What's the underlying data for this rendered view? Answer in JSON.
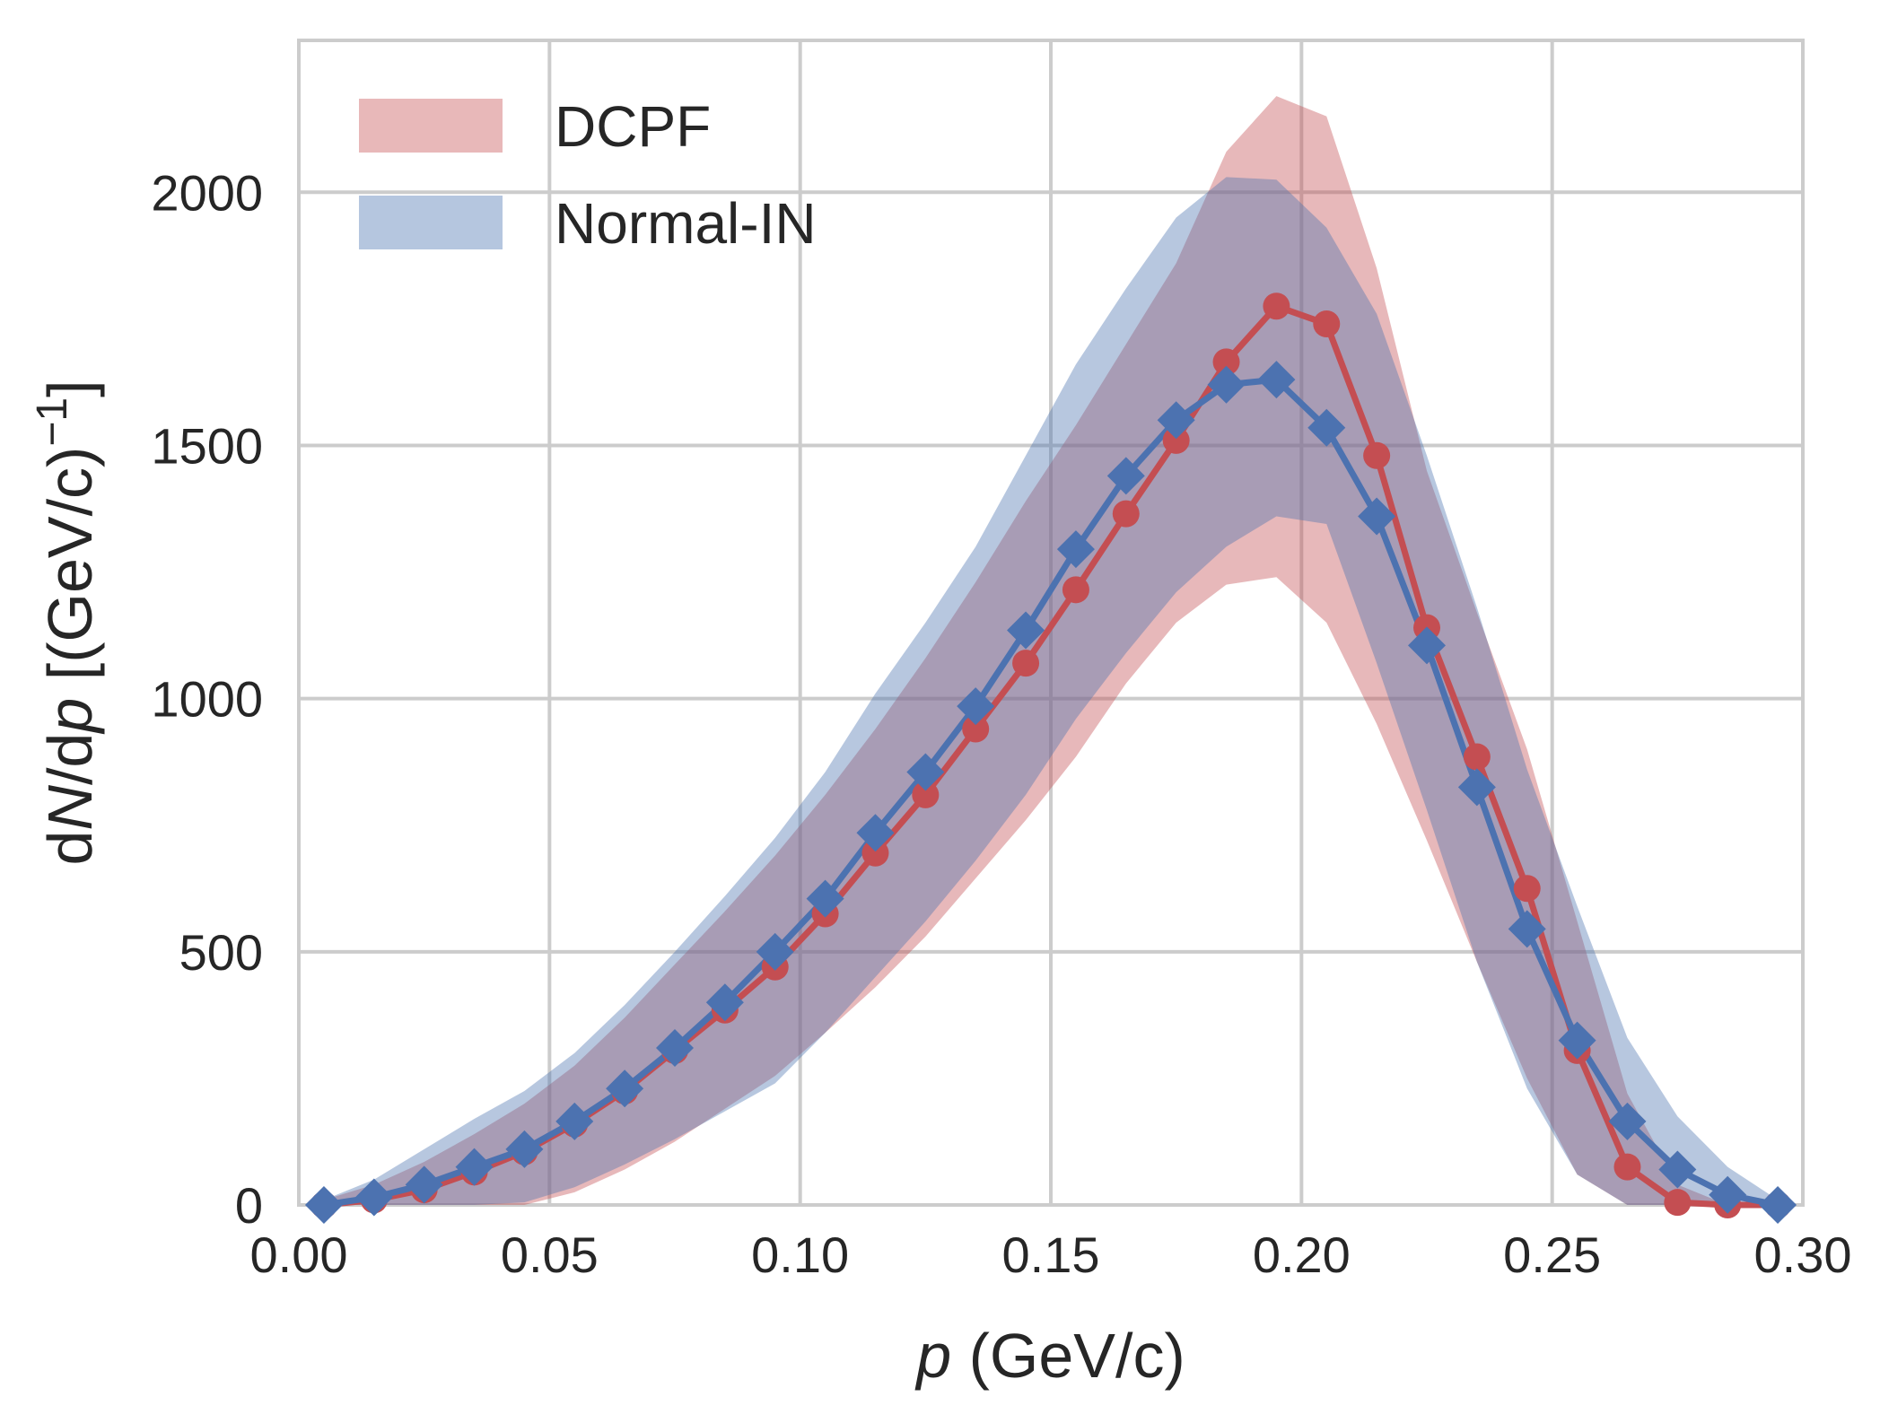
{
  "chart_data": {
    "type": "line",
    "title": "",
    "xlabel_var": "p",
    "xlabel_unit": " (GeV/c)",
    "ylabel_pre": "d",
    "ylabel_n": "N",
    "ylabel_mid": "/d",
    "ylabel_p": "p",
    "ylabel_unit": " [(GeV/c)",
    "ylabel_exp": "−1",
    "ylabel_close": "]",
    "xlim": [
      0.0,
      0.3
    ],
    "ylim": [
      0,
      2300
    ],
    "xticks": [
      0.0,
      0.05,
      0.1,
      0.15,
      0.2,
      0.25,
      0.3
    ],
    "xtick_labels": [
      "0.00",
      "0.05",
      "0.10",
      "0.15",
      "0.20",
      "0.25",
      "0.30"
    ],
    "yticks": [
      0,
      500,
      1000,
      1500,
      2000
    ],
    "ytick_labels": [
      "0",
      "500",
      "1000",
      "1500",
      "2000"
    ],
    "grid": true,
    "legend_position": "top-left",
    "series": [
      {
        "name": "DCPF",
        "color": "#c44e52",
        "band_color": "#e8b8b9",
        "marker": "circle",
        "x": [
          0.005,
          0.015,
          0.025,
          0.035,
          0.045,
          0.055,
          0.065,
          0.075,
          0.085,
          0.095,
          0.105,
          0.115,
          0.125,
          0.135,
          0.145,
          0.155,
          0.165,
          0.175,
          0.185,
          0.195,
          0.205,
          0.215,
          0.225,
          0.235,
          0.245,
          0.255,
          0.265,
          0.275,
          0.285,
          0.295
        ],
        "values": [
          0,
          10,
          30,
          65,
          105,
          160,
          225,
          305,
          385,
          470,
          575,
          695,
          810,
          940,
          1070,
          1215,
          1365,
          1510,
          1665,
          1775,
          1740,
          1480,
          1140,
          885,
          625,
          305,
          75,
          5,
          0,
          0
        ],
        "band_low": [
          0,
          0,
          0,
          0,
          0,
          25,
          70,
          125,
          190,
          255,
          340,
          430,
          530,
          645,
          760,
          885,
          1030,
          1150,
          1225,
          1240,
          1150,
          950,
          720,
          480,
          250,
          60,
          0,
          0,
          0,
          0
        ],
        "band_high": [
          10,
          40,
          85,
          140,
          200,
          275,
          370,
          475,
          580,
          690,
          810,
          940,
          1080,
          1230,
          1390,
          1540,
          1700,
          1860,
          2080,
          2190,
          2150,
          1850,
          1450,
          1170,
          900,
          560,
          220,
          40,
          0,
          0
        ]
      },
      {
        "name": "Normal-IN",
        "color": "#4c72b0",
        "band_color": "#b5c6df",
        "marker": "diamond",
        "x": [
          0.005,
          0.015,
          0.025,
          0.035,
          0.045,
          0.055,
          0.065,
          0.075,
          0.085,
          0.095,
          0.105,
          0.115,
          0.125,
          0.135,
          0.145,
          0.155,
          0.165,
          0.175,
          0.185,
          0.195,
          0.205,
          0.215,
          0.225,
          0.235,
          0.245,
          0.255,
          0.265,
          0.275,
          0.285,
          0.295
        ],
        "values": [
          0,
          15,
          40,
          75,
          110,
          165,
          230,
          310,
          400,
          500,
          605,
          735,
          855,
          985,
          1135,
          1295,
          1440,
          1550,
          1620,
          1630,
          1535,
          1360,
          1105,
          825,
          545,
          325,
          165,
          70,
          20,
          0
        ],
        "band_low": [
          0,
          0,
          0,
          0,
          5,
          35,
          80,
          130,
          185,
          240,
          340,
          450,
          560,
          680,
          810,
          960,
          1090,
          1210,
          1300,
          1360,
          1345,
          1070,
          780,
          480,
          230,
          60,
          0,
          0,
          0,
          0
        ],
        "band_high": [
          10,
          50,
          110,
          170,
          225,
          300,
          395,
          500,
          610,
          725,
          855,
          1010,
          1150,
          1300,
          1480,
          1660,
          1810,
          1950,
          2030,
          2025,
          1930,
          1760,
          1480,
          1180,
          860,
          590,
          330,
          175,
          75,
          10
        ]
      }
    ]
  }
}
